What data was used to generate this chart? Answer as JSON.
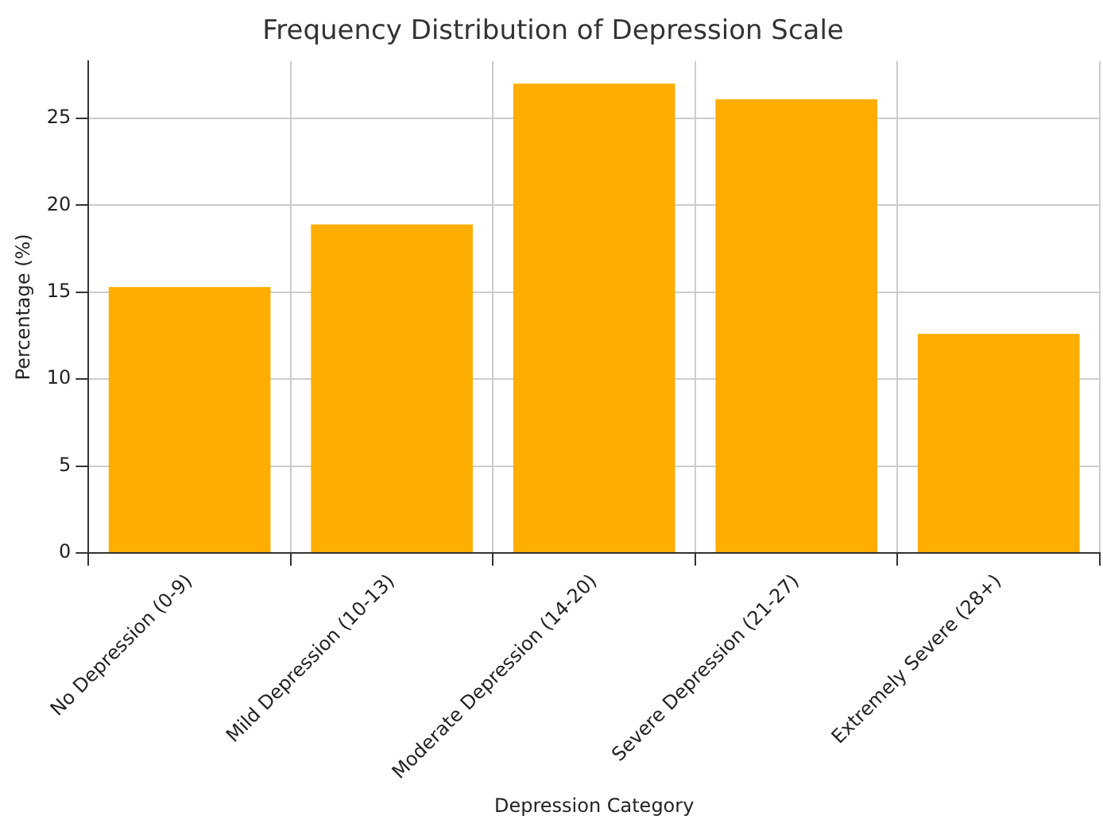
{
  "chart_data": {
    "type": "bar",
    "title": "Frequency Distribution of Depression Scale",
    "xlabel": "Depression Category",
    "ylabel": "Percentage (%)",
    "categories": [
      "No Depression (0-9)",
      "Mild Depression (10-13)",
      "Moderate Depression (14-20)",
      "Severe Depression (21-27)",
      "Extremely Severe (28+)"
    ],
    "values": [
      15.3,
      18.9,
      27.0,
      26.1,
      12.6
    ],
    "color": "#ffad00",
    "ylim": [
      0,
      28.3
    ],
    "yticks": [
      0,
      5,
      10,
      15,
      20,
      25
    ],
    "grid": true
  }
}
